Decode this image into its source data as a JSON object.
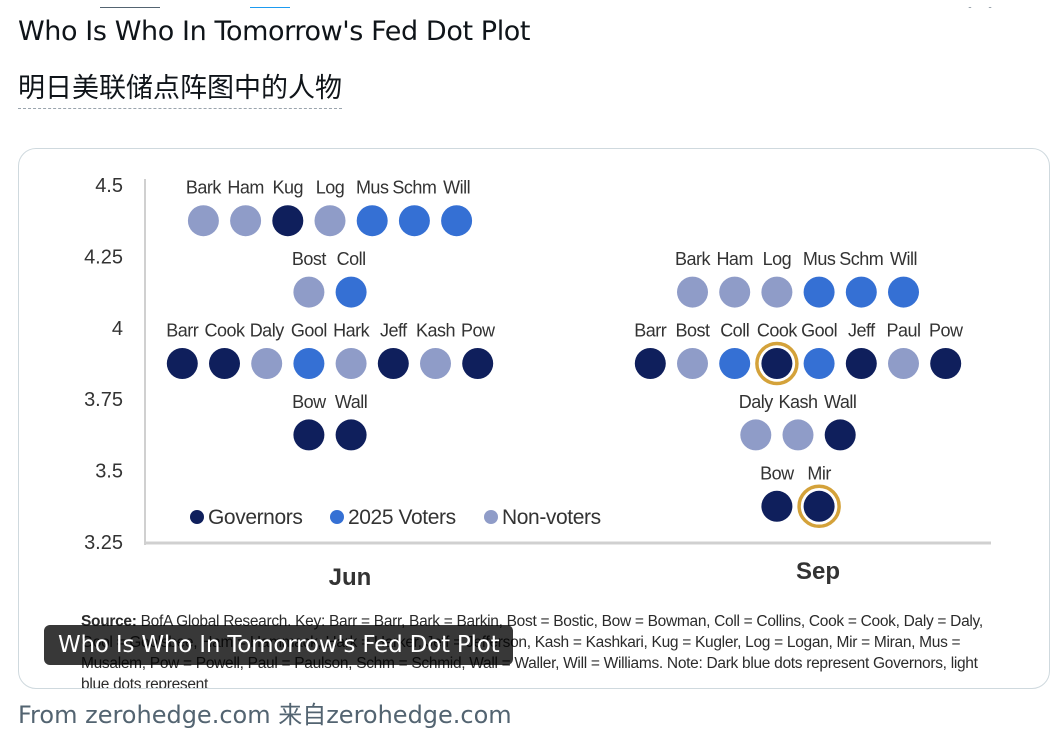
{
  "tweet": {
    "title": "Who Is Who In Tomorrow's Fed Dot Plot",
    "translation": "明日美联储点阵图中的人物",
    "media_caption": "Who Is Who In Tomorrow's Fed Dot Plot",
    "footer_source": "From zerohedge.com 来自zerohedge.com"
  },
  "colors": {
    "governor": "#0f1f5c",
    "voter_2025": "#3570d4",
    "non_voter": "#8f9cc8",
    "highlight_ring": "#d4a23a",
    "axis": "#d0d0d0"
  },
  "figure": {
    "source_label": "Source:",
    "source_text": "BofA Global Research. Key: Barr = Barr, Bark = Barkin, Bost = Bostic, Bow = Bowman, Coll = Collins, Cook = Cook, Daly = Daly, Gool = Goolsbee, Ham = Hammack, Hark = Harker, Jeff = Jefferson, Kash = Kashkari, Kug = Kugler, Log = Logan, Mir = Miran, Mus = Musalem, Pow = Powell, Paul = Paulson, Schm = Schmid, Wall = Waller, Will = Williams. Note: Dark blue dots represent Governors, light blue dots represent"
  },
  "chart_data": {
    "type": "scatter",
    "title": "",
    "xlabel": "",
    "ylabel": "",
    "yticks": [
      "4.5",
      "4.25",
      "4",
      "3.75",
      "3.5",
      "3.25"
    ],
    "ylim": [
      3.25,
      4.5
    ],
    "categories": [
      "Jun",
      "Sep"
    ],
    "legend": {
      "placement": "bottom-left",
      "items": [
        {
          "label": "Governors",
          "group": "governor"
        },
        {
          "label": "2025 Voters",
          "group": "voter_2025"
        },
        {
          "label": "Non-voters",
          "group": "non_voter"
        }
      ]
    },
    "panels": [
      {
        "name": "Jun",
        "rows": [
          {
            "y": 4.375,
            "dots": [
              {
                "name": "Bark",
                "group": "non_voter"
              },
              {
                "name": "Ham",
                "group": "non_voter"
              },
              {
                "name": "Kug",
                "group": "governor"
              },
              {
                "name": "Log",
                "group": "non_voter"
              },
              {
                "name": "Mus",
                "group": "voter_2025"
              },
              {
                "name": "Schm",
                "group": "voter_2025"
              },
              {
                "name": "Will",
                "group": "voter_2025"
              }
            ]
          },
          {
            "y": 4.125,
            "dots": [
              {
                "name": "Bost",
                "group": "non_voter"
              },
              {
                "name": "Coll",
                "group": "voter_2025"
              }
            ]
          },
          {
            "y": 3.875,
            "dots": [
              {
                "name": "Barr",
                "group": "governor"
              },
              {
                "name": "Cook",
                "group": "governor"
              },
              {
                "name": "Daly",
                "group": "non_voter"
              },
              {
                "name": "Gool",
                "group": "voter_2025"
              },
              {
                "name": "Hark",
                "group": "non_voter"
              },
              {
                "name": "Jeff",
                "group": "governor"
              },
              {
                "name": "Kash",
                "group": "non_voter"
              },
              {
                "name": "Pow",
                "group": "governor"
              }
            ]
          },
          {
            "y": 3.625,
            "dots": [
              {
                "name": "Bow",
                "group": "governor"
              },
              {
                "name": "Wall",
                "group": "governor"
              }
            ]
          }
        ]
      },
      {
        "name": "Sep",
        "rows": [
          {
            "y": 4.125,
            "dots": [
              {
                "name": "Bark",
                "group": "non_voter"
              },
              {
                "name": "Ham",
                "group": "non_voter"
              },
              {
                "name": "Log",
                "group": "non_voter"
              },
              {
                "name": "Mus",
                "group": "voter_2025"
              },
              {
                "name": "Schm",
                "group": "voter_2025"
              },
              {
                "name": "Will",
                "group": "voter_2025"
              }
            ]
          },
          {
            "y": 3.875,
            "dots": [
              {
                "name": "Barr",
                "group": "governor"
              },
              {
                "name": "Bost",
                "group": "non_voter"
              },
              {
                "name": "Coll",
                "group": "voter_2025"
              },
              {
                "name": "Cook",
                "group": "governor",
                "highlight": true
              },
              {
                "name": "Gool",
                "group": "voter_2025"
              },
              {
                "name": "Jeff",
                "group": "governor"
              },
              {
                "name": "Paul",
                "group": "non_voter"
              },
              {
                "name": "Pow",
                "group": "governor"
              }
            ]
          },
          {
            "y": 3.625,
            "dots": [
              {
                "name": "Daly",
                "group": "non_voter"
              },
              {
                "name": "Kash",
                "group": "non_voter"
              },
              {
                "name": "Wall",
                "group": "governor"
              }
            ]
          },
          {
            "y": 3.375,
            "dots": [
              {
                "name": "Bow",
                "group": "governor"
              },
              {
                "name": "Mir",
                "group": "governor",
                "highlight": true
              }
            ]
          }
        ]
      }
    ]
  }
}
